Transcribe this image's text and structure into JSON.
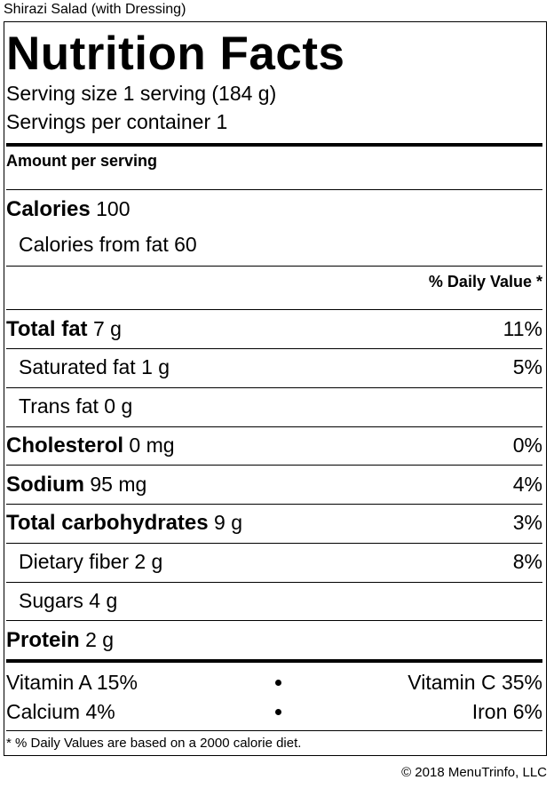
{
  "caption": "Shirazi Salad (with Dressing)",
  "title": "Nutrition Facts",
  "serving_size": "Serving size 1 serving (184 g)",
  "servings_per_container": "Servings per container 1",
  "amount_per_serving": "Amount per serving",
  "calories": {
    "label": "Calories",
    "value": "100"
  },
  "calories_from_fat": "Calories from fat 60",
  "daily_value_header": "% Daily Value *",
  "nutrients": [
    {
      "label": "Total fat",
      "value": "7 g",
      "pct": "11%"
    },
    {
      "label": "Saturated fat 1 g",
      "pct": "5%"
    },
    {
      "label": "Trans fat 0 g",
      "pct": ""
    },
    {
      "label": "Cholesterol",
      "value": "0 mg",
      "pct": "0%"
    },
    {
      "label": "Sodium",
      "value": "95 mg",
      "pct": "4%"
    },
    {
      "label": "Total carbohydrates",
      "value": "9 g",
      "pct": "3%"
    },
    {
      "label": "Dietary fiber 2 g",
      "pct": "8%"
    },
    {
      "label": "Sugars 4 g",
      "pct": ""
    },
    {
      "label": "Protein",
      "value": "2 g",
      "pct": ""
    }
  ],
  "vitamins": [
    {
      "left": "Vitamin A 15%",
      "right": "Vitamin C 35%"
    },
    {
      "left": "Calcium 4%",
      "right": "Iron 6%"
    }
  ],
  "footnote": "* % Daily Values are based on a 2000 calorie diet.",
  "copyright": "© 2018 MenuTrinfo, LLC"
}
